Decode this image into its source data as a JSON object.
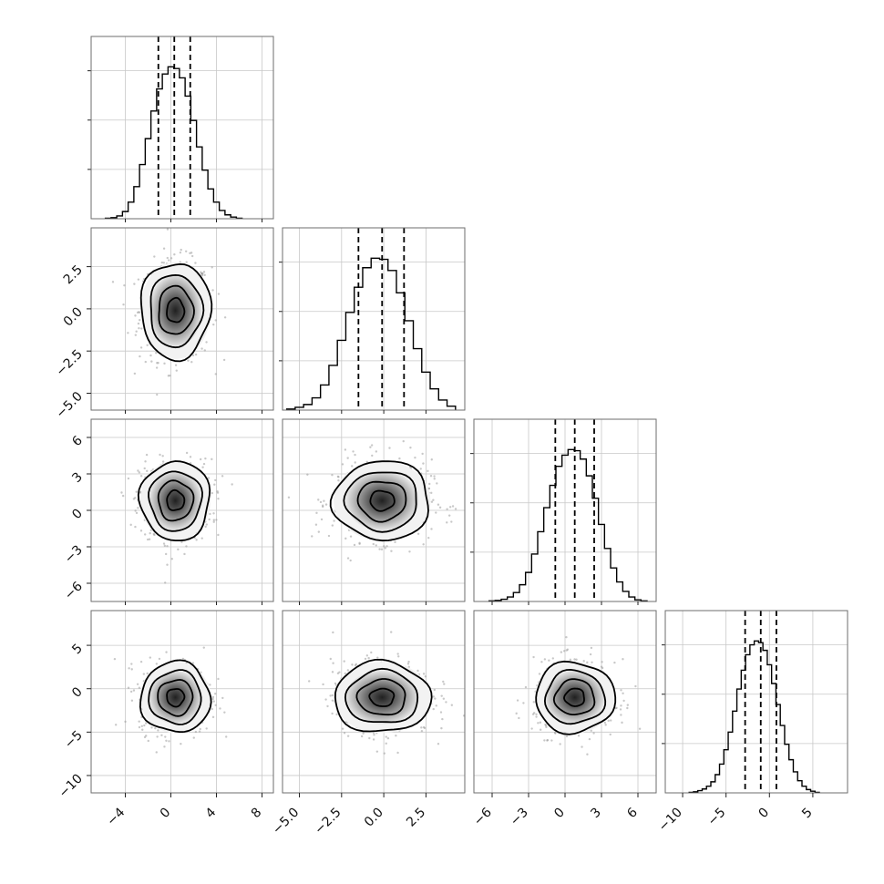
{
  "chart_data": {
    "type": "corner",
    "n_params": 4,
    "grid": true,
    "quantiles": [
      0.16,
      0.5,
      0.84
    ],
    "params": [
      {
        "range": [
          -7,
          9
        ],
        "ticks": [
          -4,
          0,
          4,
          8
        ],
        "tick_labels": [
          "−4",
          "0",
          "4",
          "8"
        ],
        "mean": 0.4,
        "sd": 1.5,
        "quantile_values": [
          -1.1,
          0.3,
          1.7
        ],
        "hist_bins": [
          [
            -5.5,
            0.01
          ],
          [
            -5.0,
            0.02
          ],
          [
            -4.5,
            0.05
          ],
          [
            -4.0,
            0.13
          ],
          [
            -3.5,
            0.3
          ],
          [
            -3.0,
            0.58
          ],
          [
            -2.5,
            0.98
          ],
          [
            -2.0,
            1.45
          ],
          [
            -1.5,
            1.95
          ],
          [
            -1.0,
            2.35
          ],
          [
            -0.5,
            2.62
          ],
          [
            0.0,
            2.75
          ],
          [
            0.5,
            2.72
          ],
          [
            1.0,
            2.55
          ],
          [
            1.5,
            2.22
          ],
          [
            2.0,
            1.78
          ],
          [
            2.5,
            1.3
          ],
          [
            3.0,
            0.88
          ],
          [
            3.5,
            0.54
          ],
          [
            4.0,
            0.3
          ],
          [
            4.5,
            0.15
          ],
          [
            5.0,
            0.07
          ],
          [
            5.5,
            0.03
          ],
          [
            6.0,
            0.01
          ]
        ]
      },
      {
        "range": [
          -6,
          4.8
        ],
        "ticks": [
          -5.0,
          -2.5,
          0.0,
          2.5
        ],
        "tick_labels": [
          "−5.0",
          "−2.5",
          "0.0",
          "2.5"
        ],
        "mean": -0.1,
        "sd": 1.4,
        "quantile_values": [
          -1.5,
          -0.1,
          1.2
        ],
        "hist_bins": [
          [
            -5.5,
            0.02
          ],
          [
            -5.0,
            0.05
          ],
          [
            -4.5,
            0.1
          ],
          [
            -4.0,
            0.22
          ],
          [
            -3.5,
            0.45
          ],
          [
            -3.0,
            0.8
          ],
          [
            -2.5,
            1.25
          ],
          [
            -2.0,
            1.75
          ],
          [
            -1.5,
            2.2
          ],
          [
            -1.0,
            2.55
          ],
          [
            -0.5,
            2.72
          ],
          [
            0.0,
            2.7
          ],
          [
            0.5,
            2.5
          ],
          [
            1.0,
            2.1
          ],
          [
            1.5,
            1.6
          ],
          [
            2.0,
            1.1
          ],
          [
            2.5,
            0.68
          ],
          [
            3.0,
            0.38
          ],
          [
            3.5,
            0.18
          ],
          [
            4.0,
            0.07
          ]
        ]
      },
      {
        "range": [
          -7.5,
          7.5
        ],
        "ticks": [
          -6,
          -3,
          0,
          3,
          6
        ],
        "tick_labels": [
          "−6",
          "−3",
          "0",
          "3",
          "6"
        ],
        "mean": 0.8,
        "sd": 1.6,
        "quantile_values": [
          -0.8,
          0.8,
          2.4
        ],
        "hist_bins": [
          [
            -6.0,
            0.01
          ],
          [
            -5.5,
            0.02
          ],
          [
            -5.0,
            0.04
          ],
          [
            -4.5,
            0.08
          ],
          [
            -4.0,
            0.16
          ],
          [
            -3.5,
            0.3
          ],
          [
            -3.0,
            0.52
          ],
          [
            -2.5,
            0.85
          ],
          [
            -2.0,
            1.25
          ],
          [
            -1.5,
            1.68
          ],
          [
            -1.0,
            2.08
          ],
          [
            -0.5,
            2.42
          ],
          [
            0.0,
            2.62
          ],
          [
            0.5,
            2.72
          ],
          [
            1.0,
            2.7
          ],
          [
            1.5,
            2.55
          ],
          [
            2.0,
            2.25
          ],
          [
            2.5,
            1.85
          ],
          [
            3.0,
            1.38
          ],
          [
            3.5,
            0.95
          ],
          [
            4.0,
            0.6
          ],
          [
            4.5,
            0.35
          ],
          [
            5.0,
            0.18
          ],
          [
            5.5,
            0.08
          ],
          [
            6.0,
            0.03
          ],
          [
            6.5,
            0.01
          ]
        ]
      },
      {
        "range": [
          -12,
          9
        ],
        "ticks": [
          -10,
          -5,
          0,
          5
        ],
        "tick_labels": [
          "−10",
          "−5",
          "0",
          "5"
        ],
        "mean": -1.0,
        "sd": 2.0,
        "quantile_values": [
          -2.8,
          -1.0,
          0.8
        ],
        "hist_bins": [
          [
            -9.0,
            0.01
          ],
          [
            -8.5,
            0.02
          ],
          [
            -8.0,
            0.04
          ],
          [
            -7.5,
            0.07
          ],
          [
            -7.0,
            0.12
          ],
          [
            -6.5,
            0.2
          ],
          [
            -6.0,
            0.33
          ],
          [
            -5.5,
            0.52
          ],
          [
            -5.0,
            0.78
          ],
          [
            -4.5,
            1.1
          ],
          [
            -4.0,
            1.48
          ],
          [
            -3.5,
            1.88
          ],
          [
            -3.0,
            2.22
          ],
          [
            -2.5,
            2.5
          ],
          [
            -2.0,
            2.68
          ],
          [
            -1.5,
            2.75
          ],
          [
            -1.0,
            2.72
          ],
          [
            -0.5,
            2.58
          ],
          [
            0.0,
            2.32
          ],
          [
            0.5,
            1.98
          ],
          [
            1.0,
            1.6
          ],
          [
            1.5,
            1.22
          ],
          [
            2.0,
            0.88
          ],
          [
            2.5,
            0.6
          ],
          [
            3.0,
            0.38
          ],
          [
            3.5,
            0.22
          ],
          [
            4.0,
            0.12
          ],
          [
            4.5,
            0.06
          ],
          [
            5.0,
            0.03
          ],
          [
            5.5,
            0.01
          ]
        ]
      }
    ],
    "pairs": [
      {
        "x_param": 0,
        "y_param": 1,
        "corr": 0.0
      },
      {
        "x_param": 0,
        "y_param": 2,
        "corr": 0.0
      },
      {
        "x_param": 1,
        "y_param": 2,
        "corr": 0.0
      },
      {
        "x_param": 0,
        "y_param": 3,
        "corr": 0.0
      },
      {
        "x_param": 1,
        "y_param": 3,
        "corr": 0.0
      },
      {
        "x_param": 2,
        "y_param": 3,
        "corr": 0.0
      }
    ],
    "contour_levels_sigma": [
      0.5,
      1.0,
      1.5,
      2.0
    ],
    "colors": {
      "line": "#000000",
      "scatter": "#9a9a9a",
      "grid": "#c8c8c8",
      "frame": "#6e6e6e"
    }
  }
}
